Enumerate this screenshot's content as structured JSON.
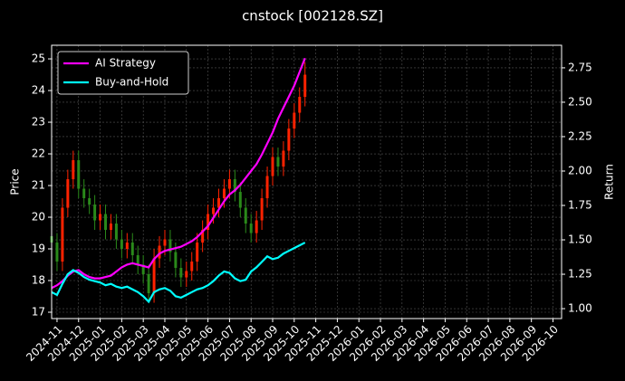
{
  "chart_data": {
    "type": "candlestick",
    "title": "cnstock [002128.SZ]",
    "ylabel": "Price",
    "y2label": "Return",
    "x": [
      -0.25,
      0,
      0.25,
      0.5,
      0.75,
      1,
      1.25,
      1.5,
      1.75,
      2,
      2.25,
      2.5,
      2.75,
      3,
      3.25,
      3.5,
      3.75,
      4,
      4.25,
      4.5,
      4.75,
      5,
      5.25,
      5.5,
      5.75,
      6,
      6.25,
      6.5,
      6.75,
      7,
      7.25,
      7.5,
      7.75,
      8,
      8.25,
      8.5,
      8.75,
      9,
      9.25,
      9.5,
      9.75,
      10,
      10.25,
      10.5,
      10.75,
      11,
      11.25,
      11.5
    ],
    "open": [
      19.4,
      19.2,
      18.6,
      20.3,
      21.2,
      21.8,
      20.9,
      20.6,
      20.4,
      19.9,
      20.1,
      19.6,
      19.8,
      19.3,
      19.0,
      19.2,
      18.8,
      18.5,
      18.2,
      17.6,
      18.7,
      19.1,
      19.3,
      18.9,
      18.4,
      18.1,
      18.3,
      18.6,
      19.2,
      19.6,
      20.1,
      20.3,
      20.6,
      20.9,
      21.2,
      20.8,
      20.3,
      19.8,
      19.5,
      19.9,
      20.6,
      21.3,
      21.9,
      21.6,
      22.1,
      22.8,
      23.3,
      23.8
    ],
    "high": [
      19.7,
      19.5,
      20.6,
      21.5,
      22.1,
      22.1,
      21.2,
      20.9,
      20.7,
      20.4,
      20.4,
      20.1,
      20.1,
      19.6,
      19.5,
      19.5,
      19.1,
      18.8,
      18.5,
      19.0,
      19.4,
      19.6,
      19.6,
      19.2,
      18.7,
      18.6,
      18.9,
      19.5,
      19.9,
      20.4,
      20.6,
      20.9,
      21.2,
      21.5,
      21.5,
      21.1,
      20.6,
      20.1,
      20.2,
      20.9,
      21.6,
      22.2,
      22.2,
      22.4,
      23.1,
      23.6,
      24.1,
      24.9
    ],
    "low": [
      18.9,
      18.3,
      18.3,
      20.0,
      20.9,
      20.6,
      20.3,
      20.1,
      19.6,
      19.6,
      19.3,
      19.3,
      19.0,
      18.7,
      18.7,
      18.5,
      18.2,
      17.9,
      17.3,
      17.3,
      18.4,
      18.8,
      18.6,
      18.1,
      17.8,
      17.8,
      18.0,
      18.3,
      18.9,
      19.3,
      19.8,
      20.0,
      20.3,
      20.6,
      20.5,
      20.0,
      19.5,
      19.2,
      19.2,
      19.6,
      20.3,
      21.0,
      21.3,
      21.3,
      21.8,
      22.5,
      23.0,
      23.5
    ],
    "close": [
      19.2,
      18.6,
      20.3,
      21.2,
      21.8,
      20.9,
      20.6,
      20.4,
      19.9,
      20.1,
      19.6,
      19.8,
      19.3,
      19.0,
      19.2,
      18.8,
      18.5,
      18.2,
      17.6,
      18.7,
      19.1,
      19.3,
      18.9,
      18.4,
      18.1,
      18.3,
      18.6,
      19.2,
      19.6,
      20.1,
      20.3,
      20.6,
      20.9,
      21.2,
      20.8,
      20.3,
      19.8,
      19.5,
      19.9,
      20.6,
      21.3,
      21.9,
      21.6,
      22.1,
      22.8,
      23.3,
      23.8,
      24.5
    ],
    "up_color": "#ff2200",
    "down_color": "#2a8a1a",
    "series": [
      {
        "name": "AI Strategy",
        "color": "#ff00ff",
        "axis": "y2",
        "values": [
          1.15,
          1.17,
          1.2,
          1.24,
          1.27,
          1.28,
          1.25,
          1.23,
          1.22,
          1.22,
          1.23,
          1.24,
          1.27,
          1.3,
          1.32,
          1.33,
          1.32,
          1.31,
          1.3,
          1.36,
          1.4,
          1.42,
          1.43,
          1.44,
          1.45,
          1.47,
          1.49,
          1.52,
          1.56,
          1.6,
          1.66,
          1.72,
          1.78,
          1.83,
          1.86,
          1.9,
          1.95,
          2.0,
          2.05,
          2.12,
          2.2,
          2.28,
          2.38,
          2.46,
          2.54,
          2.62,
          2.72,
          2.82
        ]
      },
      {
        "name": "Buy-and-Hold",
        "color": "#00ffff",
        "axis": "y2",
        "values": [
          1.12,
          1.1,
          1.18,
          1.25,
          1.28,
          1.26,
          1.23,
          1.21,
          1.2,
          1.19,
          1.17,
          1.18,
          1.16,
          1.15,
          1.16,
          1.14,
          1.12,
          1.09,
          1.05,
          1.12,
          1.14,
          1.15,
          1.13,
          1.09,
          1.08,
          1.1,
          1.12,
          1.14,
          1.15,
          1.17,
          1.2,
          1.24,
          1.27,
          1.26,
          1.22,
          1.2,
          1.21,
          1.27,
          1.3,
          1.34,
          1.38,
          1.36,
          1.37,
          1.4,
          1.42,
          1.44,
          1.46,
          1.48
        ]
      }
    ],
    "xlim": [
      -0.25,
      23.4
    ],
    "ylim": [
      16.8,
      25.43
    ],
    "y2lim": [
      0.928,
      2.914
    ],
    "xticks": [
      {
        "value": 0,
        "label": "2024-11"
      },
      {
        "value": 1,
        "label": "2024-12"
      },
      {
        "value": 2,
        "label": "2025-01"
      },
      {
        "value": 3,
        "label": "2025-02"
      },
      {
        "value": 4,
        "label": "2025-03"
      },
      {
        "value": 5,
        "label": "2025-04"
      },
      {
        "value": 6,
        "label": "2025-05"
      },
      {
        "value": 7,
        "label": "2025-06"
      },
      {
        "value": 8,
        "label": "2025-07"
      },
      {
        "value": 9,
        "label": "2025-08"
      },
      {
        "value": 10,
        "label": "2025-09"
      },
      {
        "value": 11,
        "label": "2025-10"
      },
      {
        "value": 12,
        "label": "2025-11"
      },
      {
        "value": 13,
        "label": "2025-12"
      },
      {
        "value": 14,
        "label": "2026-01"
      },
      {
        "value": 15,
        "label": "2026-02"
      },
      {
        "value": 16,
        "label": "2026-03"
      },
      {
        "value": 17,
        "label": "2026-04"
      },
      {
        "value": 18,
        "label": "2026-05"
      },
      {
        "value": 19,
        "label": "2026-06"
      },
      {
        "value": 20,
        "label": "2026-07"
      },
      {
        "value": 21,
        "label": "2026-08"
      },
      {
        "value": 22,
        "label": "2026-09"
      },
      {
        "value": 23,
        "label": "2026-10"
      }
    ],
    "yticks": [
      17,
      18,
      19,
      20,
      21,
      22,
      23,
      24,
      25
    ],
    "y2ticks": [
      {
        "value": 1,
        "label": "1.00"
      },
      {
        "value": 1.25,
        "label": "1.25"
      },
      {
        "value": 1.5,
        "label": "1.50"
      },
      {
        "value": 1.75,
        "label": "1.75"
      },
      {
        "value": 2,
        "label": "2.00"
      },
      {
        "value": 2.25,
        "label": "2.25"
      },
      {
        "value": 2.5,
        "label": "2.50"
      },
      {
        "value": 2.75,
        "label": "2.75"
      }
    ],
    "grid": true,
    "legend": "upper left"
  }
}
